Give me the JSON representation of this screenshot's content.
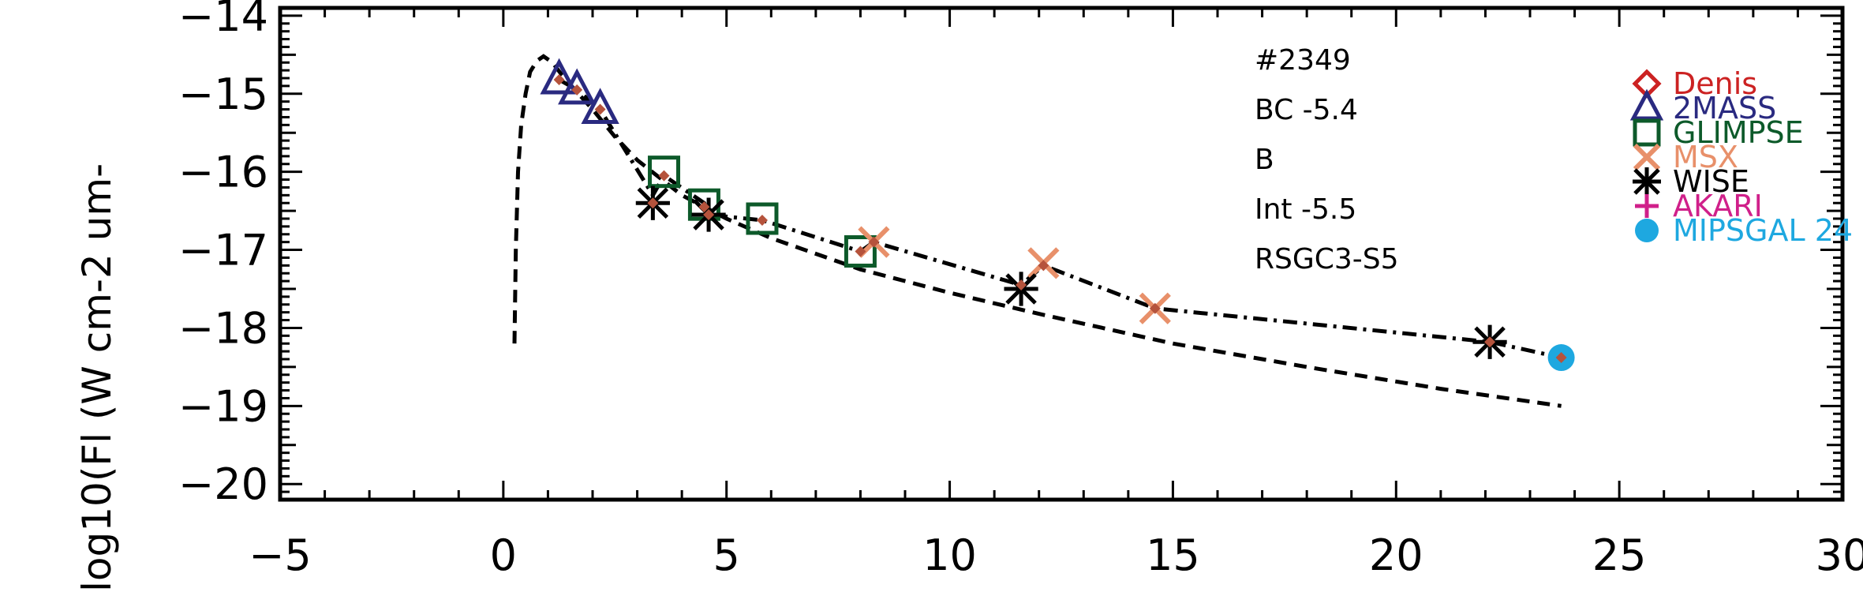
{
  "chart_data": {
    "type": "scatter",
    "title": "",
    "xlabel": "",
    "ylabel": "log10(Fl (W cm-2 um-",
    "xlim": [
      -5,
      30
    ],
    "ylim": [
      -20.2,
      -13.9
    ],
    "x_ticks": [
      -5,
      0,
      5,
      10,
      15,
      20,
      25,
      30
    ],
    "x_tick_labels": [
      "−5",
      "0",
      "5",
      "10",
      "15",
      "20",
      "25",
      "30"
    ],
    "y_ticks": [
      -20,
      -19,
      -18,
      -17,
      -16,
      -15,
      -14
    ],
    "y_tick_labels": [
      "−20",
      "−19",
      "−18",
      "−17",
      "−16",
      "−15",
      "−14"
    ],
    "annotations": [
      "#2349",
      "BC -5.4",
      "B",
      "Int -5.5",
      "RSGC3-S5"
    ],
    "legend": [
      {
        "name": "Denis",
        "marker": "diamond",
        "color": "#cc2222"
      },
      {
        "name": "2MASS",
        "marker": "triangle",
        "color": "#2a2a80"
      },
      {
        "name": "GLIMPSE",
        "marker": "square",
        "color": "#0d5a2a"
      },
      {
        "name": "MSX",
        "marker": "x",
        "color": "#e8906a"
      },
      {
        "name": "WISE",
        "marker": "asterisk",
        "color": "#000000"
      },
      {
        "name": "AKARI",
        "marker": "plus",
        "color": "#d0208a"
      },
      {
        "name": "MIPSGAL 24",
        "marker": "circle",
        "color": "#1ea8e0"
      }
    ],
    "series": [
      {
        "name": "2MASS",
        "marker": "triangle",
        "color": "#2a2a80",
        "points": [
          [
            1.25,
            -14.82
          ],
          [
            1.65,
            -14.95
          ],
          [
            2.17,
            -15.2
          ]
        ]
      },
      {
        "name": "GLIMPSE",
        "marker": "square",
        "color": "#0d5a2a",
        "points": [
          [
            3.6,
            -16.0
          ],
          [
            4.5,
            -16.42
          ],
          [
            5.8,
            -16.6
          ],
          [
            8.0,
            -17.02
          ]
        ]
      },
      {
        "name": "MSX",
        "marker": "x",
        "color": "#e8906a",
        "points": [
          [
            8.3,
            -16.9
          ],
          [
            12.1,
            -17.17
          ],
          [
            14.6,
            -17.75
          ]
        ]
      },
      {
        "name": "WISE",
        "marker": "asterisk",
        "color": "#000000",
        "points": [
          [
            3.35,
            -16.4
          ],
          [
            4.6,
            -16.55
          ],
          [
            11.6,
            -17.5
          ],
          [
            22.1,
            -18.18
          ]
        ]
      },
      {
        "name": "MIPSGAL 24",
        "marker": "circle",
        "color": "#1ea8e0",
        "points": [
          [
            23.7,
            -18.38
          ]
        ]
      },
      {
        "name": "",
        "marker": "dot",
        "color": "#b5533c",
        "points": [
          [
            1.25,
            -14.82
          ],
          [
            1.65,
            -14.95
          ],
          [
            2.17,
            -15.2
          ],
          [
            3.35,
            -16.4
          ],
          [
            3.6,
            -16.05
          ],
          [
            4.5,
            -16.45
          ],
          [
            4.6,
            -16.55
          ],
          [
            5.8,
            -16.62
          ],
          [
            8.0,
            -17.02
          ],
          [
            8.3,
            -16.9
          ],
          [
            11.6,
            -17.45
          ],
          [
            12.1,
            -17.2
          ],
          [
            14.6,
            -17.75
          ],
          [
            22.1,
            -18.18
          ],
          [
            23.7,
            -18.38
          ]
        ]
      }
    ],
    "lines": [
      {
        "style": "dashed",
        "color": "#000000",
        "points": [
          [
            0.25,
            -18.2
          ],
          [
            0.28,
            -17.0
          ],
          [
            0.33,
            -16.0
          ],
          [
            0.4,
            -15.4
          ],
          [
            0.5,
            -15.0
          ],
          [
            0.6,
            -14.72
          ],
          [
            0.75,
            -14.58
          ],
          [
            0.9,
            -14.52
          ],
          [
            1.1,
            -14.6
          ],
          [
            1.3,
            -14.75
          ],
          [
            1.65,
            -14.98
          ],
          [
            2.0,
            -15.2
          ],
          [
            2.5,
            -15.55
          ],
          [
            3.0,
            -15.85
          ],
          [
            4.0,
            -16.3
          ],
          [
            5.0,
            -16.6
          ],
          [
            6.0,
            -16.85
          ],
          [
            8.0,
            -17.25
          ],
          [
            10.0,
            -17.55
          ],
          [
            12.0,
            -17.82
          ],
          [
            15.0,
            -18.2
          ],
          [
            18.0,
            -18.5
          ],
          [
            21.0,
            -18.78
          ],
          [
            23.7,
            -19.0
          ]
        ]
      },
      {
        "style": "dashdot",
        "color": "#000000",
        "points": [
          [
            1.25,
            -14.82
          ],
          [
            1.65,
            -14.95
          ],
          [
            2.17,
            -15.2
          ],
          [
            3.35,
            -16.3
          ],
          [
            3.6,
            -16.05
          ],
          [
            4.5,
            -16.4
          ],
          [
            4.6,
            -16.55
          ],
          [
            5.8,
            -16.62
          ],
          [
            8.0,
            -17.02
          ],
          [
            8.3,
            -16.9
          ],
          [
            11.6,
            -17.45
          ],
          [
            12.1,
            -17.2
          ],
          [
            14.6,
            -17.75
          ],
          [
            22.1,
            -18.18
          ],
          [
            23.7,
            -18.38
          ]
        ]
      }
    ]
  }
}
